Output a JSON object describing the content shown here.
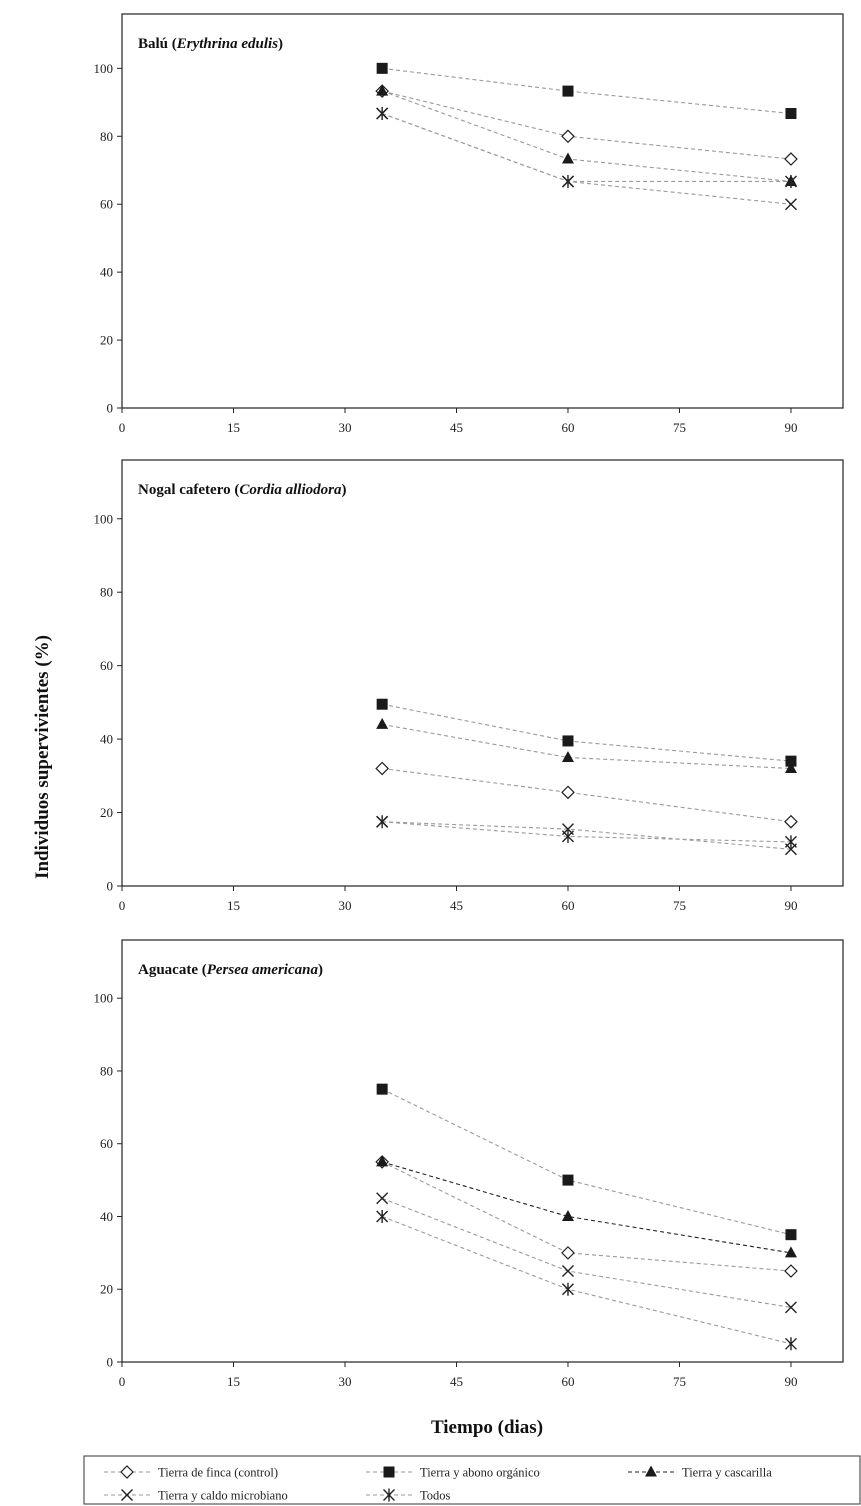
{
  "chart_data": {
    "type": "line",
    "ylabel": "Individuos supervivientes (%)",
    "xlabel": "Tiempo  (dias)",
    "x_ticks": [
      "0",
      "15",
      "30",
      "45",
      "60",
      "75",
      "90"
    ],
    "y_ticks": [
      "0",
      "20",
      "40",
      "60",
      "80",
      "100"
    ],
    "xlim": [
      0,
      97
    ],
    "ylim": [
      0,
      100
    ],
    "grid": false,
    "legend_position": "bottom",
    "series_styles": [
      {
        "name": "Tierra de finca (control)",
        "marker": "diamond-open",
        "color": "#9a9a9a",
        "dash": "dashed"
      },
      {
        "name": "Tierra y abono orgánico",
        "marker": "square-filled",
        "color": "#9a9a9a",
        "dash": "dashed"
      },
      {
        "name": "Tierra y cascarilla",
        "marker": "triangle-filled",
        "color": "#9a9a9a",
        "dash": "dashed"
      },
      {
        "name": "Tierra y caldo microbiano",
        "marker": "x",
        "color": "#9a9a9a",
        "dash": "dashed"
      },
      {
        "name": "Todos",
        "marker": "asterisk",
        "color": "#9a9a9a",
        "dash": "dashed"
      }
    ],
    "panels": [
      {
        "title_plain": "Balú (",
        "title_italic": "Erythrina edulis",
        "title_end": ")",
        "x": [
          35,
          60,
          90
        ],
        "series": [
          {
            "name": "Tierra de finca (control)",
            "values": [
              93.3,
              80,
              73.3
            ]
          },
          {
            "name": "Tierra y abono orgánico",
            "values": [
              100,
              93.3,
              86.7
            ]
          },
          {
            "name": "Tierra y cascarilla",
            "values": [
              93.3,
              73.3,
              66.7
            ]
          },
          {
            "name": "Tierra y caldo microbiano",
            "values": [
              86.7,
              66.7,
              60
            ]
          },
          {
            "name": "Todos",
            "values": [
              86.7,
              66.7,
              66.7
            ]
          }
        ]
      },
      {
        "title_plain": "Nogal cafetero (",
        "title_italic": "Cordia alliodora",
        "title_end": ")",
        "x": [
          35,
          60,
          90
        ],
        "series": [
          {
            "name": "Tierra de finca (control)",
            "values": [
              32,
              25.5,
              17.5
            ]
          },
          {
            "name": "Tierra y abono orgánico",
            "values": [
              49.5,
              39.5,
              34
            ]
          },
          {
            "name": "Tierra y cascarilla",
            "values": [
              44,
              35,
              32
            ]
          },
          {
            "name": "Tierra y caldo microbiano",
            "values": [
              17.5,
              15.5,
              10
            ]
          },
          {
            "name": "Todos",
            "values": [
              17.5,
              13.5,
              12
            ]
          }
        ]
      },
      {
        "title_plain": "Aguacate (",
        "title_italic": "Persea americana",
        "title_end": ")",
        "x": [
          35,
          60,
          90
        ],
        "series": [
          {
            "name": "Tierra de finca (control)",
            "values": [
              55,
              30,
              25
            ]
          },
          {
            "name": "Tierra y abono orgánico",
            "values": [
              75,
              50,
              35
            ]
          },
          {
            "name": "Tierra y cascarilla",
            "values": [
              55,
              40,
              30
            ],
            "line_color": "#222222"
          },
          {
            "name": "Tierra y caldo microbiano",
            "values": [
              45,
              25,
              15
            ]
          },
          {
            "name": "Todos",
            "values": [
              40,
              20,
              5
            ]
          }
        ]
      }
    ]
  },
  "legend": {
    "items": [
      {
        "label": "Tierra de finca (control)",
        "marker": "diamond-open",
        "line_color": "#9a9a9a"
      },
      {
        "label": "Tierra y abono orgánico",
        "marker": "square-filled",
        "line_color": "#9a9a9a"
      },
      {
        "label": "Tierra y cascarilla",
        "marker": "triangle-filled",
        "line_color": "#222222"
      },
      {
        "label": "Tierra y caldo microbiano",
        "marker": "x",
        "line_color": "#9a9a9a"
      },
      {
        "label": "Todos",
        "marker": "asterisk",
        "line_color": "#9a9a9a"
      }
    ]
  }
}
